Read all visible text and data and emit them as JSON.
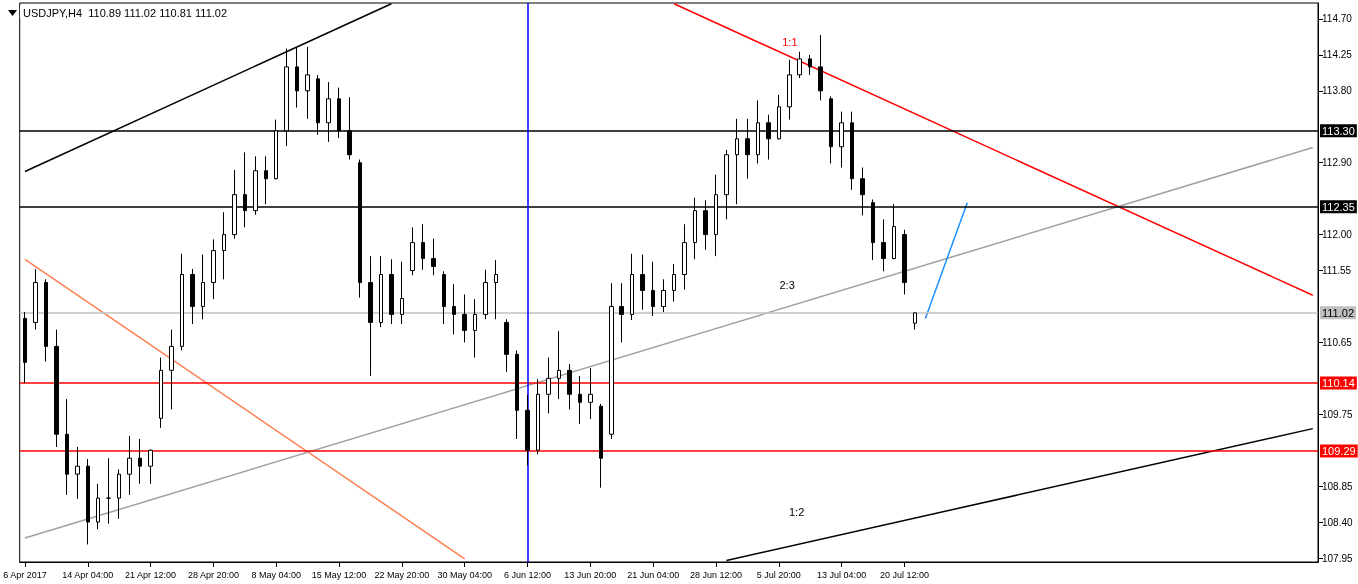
{
  "chart_data": {
    "type": "candlestick",
    "title": "USDJPY,H4  110.89 111.02 110.81 111.02",
    "categories": [
      "6 Apr 2017",
      null,
      null,
      null,
      null,
      null,
      "14 Apr 04:00",
      null,
      null,
      null,
      null,
      null,
      "21 Apr 12:00",
      null,
      null,
      null,
      null,
      null,
      "28 Apr 20:00",
      null,
      null,
      null,
      null,
      null,
      "8 May 04:00",
      null,
      null,
      null,
      null,
      null,
      "15 May 12:00",
      null,
      null,
      null,
      null,
      null,
      "22 May 20:00",
      null,
      null,
      null,
      null,
      null,
      "30 May 04:00",
      null,
      null,
      null,
      null,
      null,
      "6 Jun 12:00",
      null,
      null,
      null,
      null,
      null,
      "13 Jun 20:00",
      null,
      null,
      null,
      null,
      null,
      "21 Jun 04:00",
      null,
      null,
      null,
      null,
      null,
      "28 Jun 12:00",
      null,
      null,
      null,
      null,
      null,
      "5 Jul 20:00",
      null,
      null,
      null,
      null,
      null,
      "13 Jul 04:00",
      null,
      null,
      null,
      null,
      null,
      "20 Jul 12:00",
      null,
      null,
      null,
      null,
      null,
      null,
      null,
      null,
      null,
      null,
      null,
      null,
      null,
      null,
      null,
      null,
      null,
      null,
      null,
      null,
      null,
      null,
      null,
      null,
      null,
      null,
      null,
      null,
      null,
      null,
      null,
      null,
      null,
      null,
      null,
      null,
      null,
      null,
      null
    ],
    "color": "#000000",
    "ohlc": [
      [
        110.95,
        111.03,
        110.14,
        110.4
      ],
      [
        110.9,
        111.57,
        110.81,
        111.4
      ],
      [
        111.4,
        111.44,
        110.41,
        110.6
      ],
      [
        110.6,
        110.81,
        109.34,
        109.5
      ],
      [
        109.5,
        109.94,
        108.74,
        109.0
      ],
      [
        109.0,
        109.34,
        108.69,
        109.1
      ],
      [
        109.1,
        109.19,
        108.12,
        108.4
      ],
      [
        108.4,
        108.88,
        108.31,
        108.7
      ],
      [
        108.7,
        109.2,
        108.38,
        108.7
      ],
      [
        108.7,
        109.06,
        108.44,
        109.0
      ],
      [
        109.0,
        109.48,
        108.74,
        109.2
      ],
      [
        109.2,
        109.44,
        108.88,
        109.1
      ],
      [
        109.1,
        109.31,
        108.88,
        109.3
      ],
      [
        109.7,
        110.46,
        109.58,
        110.3
      ],
      [
        110.3,
        110.81,
        109.81,
        110.6
      ],
      [
        110.6,
        111.76,
        110.55,
        111.5
      ],
      [
        111.5,
        111.57,
        110.88,
        111.1
      ],
      [
        111.1,
        111.75,
        110.94,
        111.4
      ],
      [
        111.4,
        111.94,
        111.19,
        111.8
      ],
      [
        111.8,
        112.28,
        111.44,
        112.0
      ],
      [
        112.0,
        112.81,
        111.95,
        112.5
      ],
      [
        112.5,
        113.03,
        112.09,
        112.3
      ],
      [
        112.3,
        112.98,
        112.25,
        112.8
      ],
      [
        112.8,
        112.98,
        112.38,
        112.7
      ],
      [
        112.7,
        113.44,
        112.69,
        113.3
      ],
      [
        113.3,
        114.33,
        113.11,
        114.1
      ],
      [
        114.1,
        114.35,
        113.59,
        113.8
      ],
      [
        113.8,
        114.35,
        113.45,
        114.0
      ],
      [
        113.95,
        114.0,
        113.25,
        113.4
      ],
      [
        113.4,
        113.91,
        113.16,
        113.7
      ],
      [
        113.7,
        113.84,
        113.21,
        113.3
      ],
      [
        113.3,
        113.72,
        112.94,
        113.0
      ],
      [
        112.9,
        112.94,
        111.21,
        111.4
      ],
      [
        111.4,
        111.73,
        110.23,
        110.9
      ],
      [
        110.9,
        111.73,
        110.84,
        111.5
      ],
      [
        111.5,
        111.69,
        110.88,
        111.0
      ],
      [
        111.0,
        111.66,
        110.88,
        111.2
      ],
      [
        111.55,
        112.09,
        111.49,
        111.9
      ],
      [
        111.9,
        112.13,
        111.56,
        111.7
      ],
      [
        111.7,
        111.95,
        111.49,
        111.6
      ],
      [
        111.5,
        111.54,
        110.88,
        111.1
      ],
      [
        111.1,
        111.38,
        110.75,
        111.0
      ],
      [
        111.0,
        111.25,
        110.65,
        110.8
      ],
      [
        110.8,
        111.19,
        110.46,
        111.0
      ],
      [
        111.0,
        111.56,
        110.94,
        111.4
      ],
      [
        111.4,
        111.68,
        110.94,
        111.5
      ],
      [
        110.9,
        110.94,
        110.28,
        110.5
      ],
      [
        110.5,
        110.55,
        109.44,
        109.8
      ],
      [
        109.8,
        109.99,
        109.11,
        109.3
      ],
      [
        109.3,
        110.19,
        109.25,
        110.0
      ],
      [
        110.0,
        110.46,
        109.76,
        110.2
      ],
      [
        110.2,
        110.79,
        109.94,
        110.3
      ],
      [
        110.3,
        110.38,
        109.81,
        110.0
      ],
      [
        110.0,
        110.23,
        109.63,
        109.9
      ],
      [
        109.9,
        110.33,
        109.69,
        110.0
      ],
      [
        109.85,
        109.88,
        108.83,
        109.2
      ],
      [
        109.5,
        111.39,
        109.44,
        111.1
      ],
      [
        111.1,
        111.39,
        110.65,
        111.0
      ],
      [
        111.0,
        111.76,
        110.93,
        111.5
      ],
      [
        111.5,
        111.75,
        111.06,
        111.3
      ],
      [
        111.3,
        111.66,
        110.98,
        111.1
      ],
      [
        111.1,
        111.44,
        111.03,
        111.3
      ],
      [
        111.3,
        111.63,
        111.16,
        111.5
      ],
      [
        111.5,
        112.13,
        111.31,
        111.9
      ],
      [
        111.9,
        112.46,
        111.69,
        112.3
      ],
      [
        112.3,
        112.43,
        111.81,
        112.0
      ],
      [
        112.0,
        112.75,
        111.73,
        112.5
      ],
      [
        112.5,
        113.06,
        112.19,
        113.0
      ],
      [
        113.0,
        113.45,
        112.38,
        113.2
      ],
      [
        113.2,
        113.45,
        112.7,
        113.0
      ],
      [
        113.0,
        113.68,
        112.89,
        113.4
      ],
      [
        113.4,
        113.5,
        112.94,
        113.2
      ],
      [
        113.2,
        113.75,
        113.19,
        113.6
      ],
      [
        113.6,
        114.19,
        113.44,
        114.0
      ],
      [
        114.0,
        114.29,
        113.96,
        114.2
      ],
      [
        114.2,
        114.25,
        114.0,
        114.1
      ],
      [
        114.1,
        114.5,
        113.68,
        113.8
      ],
      [
        113.7,
        113.73,
        112.89,
        113.1
      ],
      [
        113.1,
        113.54,
        112.84,
        113.4
      ],
      [
        113.4,
        113.54,
        112.56,
        112.7
      ],
      [
        112.7,
        112.84,
        112.24,
        112.5
      ],
      [
        112.4,
        112.44,
        111.68,
        111.9
      ],
      [
        111.9,
        112.19,
        111.54,
        111.7
      ],
      [
        111.7,
        112.38,
        111.69,
        112.1
      ],
      [
        112.0,
        112.06,
        111.25,
        111.4
      ],
      [
        110.89,
        111.02,
        110.81,
        111.02
      ],
      null,
      null,
      null,
      null,
      null,
      null,
      null,
      null,
      null,
      null,
      null,
      null,
      null,
      null,
      null,
      null,
      null,
      null,
      null,
      null,
      null,
      null,
      null,
      null,
      null,
      null,
      null,
      null,
      null,
      null,
      null,
      null,
      null,
      null,
      null,
      null,
      null,
      null
    ],
    "series": [
      {
        "type": "line",
        "color": "#000000",
        "values": [
          112.79,
          null,
          null,
          null,
          null,
          null,
          null,
          null,
          null,
          null,
          null,
          null,
          null,
          null,
          null,
          null,
          null,
          null,
          null,
          null,
          null,
          null,
          null,
          null,
          null,
          null,
          null,
          null,
          null,
          null,
          null,
          null,
          null,
          null,
          null,
          114.89,
          null,
          null,
          null,
          null,
          null,
          null,
          null,
          null,
          null,
          null,
          null,
          null,
          null,
          null,
          null,
          null,
          null,
          null,
          null,
          null,
          null,
          null,
          null,
          null,
          null,
          null,
          null,
          null,
          null,
          null,
          null,
          null,
          null,
          null,
          null,
          null,
          null,
          null,
          null,
          null,
          null,
          null,
          null,
          null,
          null,
          null,
          null,
          null,
          null,
          null,
          null,
          null,
          null,
          null,
          null,
          null,
          null,
          null,
          null,
          null,
          null,
          null,
          null,
          null,
          null,
          null,
          null,
          null,
          null,
          null,
          null,
          null,
          null,
          null,
          null,
          null,
          null,
          null,
          null,
          null,
          null,
          null,
          null,
          null,
          null,
          null,
          null,
          null
        ]
      },
      {
        "type": "line",
        "color": "#ff0000",
        "values": [
          null,
          null,
          null,
          null,
          null,
          null,
          null,
          null,
          null,
          null,
          null,
          null,
          null,
          null,
          null,
          null,
          null,
          null,
          null,
          null,
          null,
          null,
          null,
          null,
          null,
          null,
          null,
          null,
          null,
          null,
          null,
          null,
          null,
          null,
          null,
          null,
          null,
          null,
          null,
          null,
          null,
          null,
          null,
          null,
          null,
          null,
          null,
          null,
          null,
          null,
          null,
          null,
          null,
          null,
          null,
          null,
          null,
          null,
          null,
          null,
          null,
          null,
          114.89,
          null,
          null,
          null,
          null,
          null,
          null,
          null,
          null,
          null,
          null,
          null,
          null,
          null,
          null,
          null,
          null,
          null,
          null,
          null,
          null,
          null,
          null,
          null,
          null,
          null,
          null,
          null,
          null,
          null,
          null,
          null,
          null,
          null,
          null,
          null,
          null,
          null,
          null,
          null,
          null,
          null,
          null,
          null,
          null,
          null,
          null,
          null,
          null,
          null,
          null,
          null,
          null,
          null,
          null,
          null,
          null,
          null,
          null,
          null,
          null,
          111.24
        ]
      },
      {
        "type": "line",
        "color": "#ff7f50",
        "values": [
          111.69,
          null,
          null,
          null,
          null,
          null,
          null,
          null,
          null,
          null,
          null,
          null,
          null,
          null,
          null,
          null,
          null,
          null,
          null,
          null,
          null,
          null,
          null,
          null,
          null,
          null,
          null,
          null,
          null,
          null,
          null,
          null,
          null,
          null,
          null,
          null,
          null,
          null,
          null,
          null,
          null,
          null,
          107.94,
          null,
          null,
          null,
          null,
          null,
          null,
          null,
          null,
          null,
          null,
          null,
          null,
          null,
          null,
          null,
          null,
          null,
          null,
          null,
          null,
          null,
          null,
          null,
          null,
          null,
          null,
          null,
          null,
          null,
          null,
          null,
          null,
          null,
          null,
          null,
          null,
          null,
          null,
          null,
          null,
          null,
          null,
          null,
          null,
          null,
          null,
          null,
          null,
          null,
          null,
          null,
          null,
          null,
          null,
          null,
          null,
          null,
          null,
          null,
          null,
          null,
          null,
          null,
          null,
          null,
          null,
          null,
          null,
          null,
          null,
          null,
          null,
          null,
          null,
          null,
          null,
          null,
          null,
          null,
          null,
          null
        ]
      },
      {
        "type": "line",
        "color": "#a0a0a0",
        "values": [
          108.2,
          null,
          null,
          null,
          null,
          null,
          null,
          null,
          null,
          null,
          null,
          null,
          null,
          null,
          null,
          null,
          null,
          null,
          null,
          null,
          null,
          null,
          null,
          null,
          null,
          null,
          null,
          null,
          null,
          null,
          null,
          null,
          null,
          null,
          null,
          null,
          null,
          null,
          null,
          null,
          null,
          null,
          null,
          null,
          null,
          null,
          null,
          null,
          null,
          null,
          null,
          null,
          null,
          null,
          null,
          null,
          null,
          null,
          null,
          null,
          null,
          null,
          null,
          null,
          null,
          null,
          null,
          null,
          null,
          null,
          null,
          null,
          null,
          null,
          null,
          null,
          null,
          null,
          null,
          null,
          null,
          null,
          null,
          null,
          null,
          null,
          null,
          null,
          null,
          null,
          null,
          null,
          null,
          null,
          null,
          null,
          null,
          null,
          null,
          null,
          null,
          null,
          null,
          null,
          null,
          null,
          null,
          null,
          null,
          null,
          null,
          null,
          null,
          null,
          null,
          null,
          null,
          null,
          null,
          null,
          null,
          null,
          null,
          113.09
        ]
      },
      {
        "type": "line",
        "color": "#000000",
        "values": [
          null,
          null,
          null,
          null,
          null,
          null,
          null,
          null,
          null,
          null,
          null,
          null,
          null,
          null,
          null,
          null,
          null,
          null,
          null,
          null,
          null,
          null,
          null,
          null,
          null,
          null,
          null,
          null,
          null,
          null,
          null,
          null,
          null,
          null,
          null,
          null,
          null,
          null,
          null,
          null,
          null,
          null,
          null,
          null,
          null,
          null,
          null,
          null,
          null,
          null,
          null,
          null,
          null,
          null,
          null,
          null,
          null,
          null,
          null,
          null,
          null,
          null,
          null,
          null,
          null,
          null,
          null,
          107.92,
          null,
          null,
          null,
          null,
          null,
          null,
          null,
          null,
          null,
          null,
          null,
          null,
          null,
          null,
          null,
          null,
          null,
          null,
          null,
          null,
          null,
          null,
          null,
          null,
          null,
          null,
          null,
          null,
          null,
          null,
          null,
          null,
          null,
          null,
          null,
          null,
          null,
          null,
          null,
          null,
          null,
          null,
          null,
          null,
          null,
          null,
          null,
          null,
          null,
          null,
          null,
          null,
          null,
          null,
          null,
          109.57
        ]
      },
      {
        "type": "line",
        "color": "#1e90ff",
        "values": [
          null,
          null,
          null,
          null,
          null,
          null,
          null,
          null,
          null,
          null,
          null,
          null,
          null,
          null,
          null,
          null,
          null,
          null,
          null,
          null,
          null,
          null,
          null,
          null,
          null,
          null,
          null,
          null,
          null,
          null,
          null,
          null,
          null,
          null,
          null,
          null,
          null,
          null,
          null,
          null,
          null,
          null,
          null,
          null,
          null,
          null,
          null,
          null,
          null,
          null,
          null,
          null,
          null,
          null,
          null,
          null,
          null,
          null,
          null,
          null,
          null,
          null,
          null,
          null,
          null,
          null,
          null,
          null,
          null,
          null,
          null,
          null,
          null,
          null,
          null,
          null,
          null,
          null,
          null,
          null,
          null,
          null,
          null,
          null,
          null,
          null,
          110.95,
          null,
          null,
          null,
          112.4,
          null,
          null,
          null,
          null,
          null,
          null,
          null,
          null,
          null,
          null,
          null,
          null,
          null,
          null,
          null,
          null,
          null,
          null,
          null,
          null,
          null,
          null,
          null,
          null,
          null,
          null,
          null,
          null,
          null,
          null,
          null,
          null,
          null
        ]
      }
    ],
    "ref_lines": [
      {
        "axis": "y",
        "value": 113.3,
        "label": "113.30",
        "color": "#000000",
        "line_style": "solid"
      },
      {
        "axis": "y",
        "value": 112.35,
        "label": "112.35",
        "color": "#000000",
        "line_style": "solid"
      },
      {
        "axis": "y",
        "value": 111.02,
        "label": "111.02",
        "color": "#c0c0c0",
        "line_style": "solid"
      },
      {
        "axis": "y",
        "value": 110.14,
        "label": "110.14",
        "color": "#ff0000",
        "line_style": "solid"
      },
      {
        "axis": "y",
        "value": 109.29,
        "label": "109.29",
        "color": "#ff0000",
        "line_style": "solid"
      },
      {
        "axis": "x",
        "value": "6 Jun 12:00",
        "color": "#0000ff",
        "line_style": "solid"
      }
    ],
    "annotations": [
      "1:1",
      "2:3",
      "1:2"
    ],
    "ylim": [
      107.9,
      114.9
    ],
    "yticks": [
      {
        "value": 114.7,
        "label": "114.70"
      },
      {
        "value": 114.25,
        "label": "114.25"
      },
      {
        "value": 113.8,
        "label": "113.80"
      },
      {
        "value": 112.9,
        "label": "112.90"
      },
      {
        "value": 112.0,
        "label": "112.00"
      },
      {
        "value": 111.55,
        "label": "111.55"
      },
      {
        "value": 110.65,
        "label": "110.65"
      },
      {
        "value": 109.75,
        "label": "109.75"
      },
      {
        "value": 108.85,
        "label": "108.85"
      },
      {
        "value": 108.4,
        "label": "108.40"
      },
      {
        "value": 107.95,
        "label": "107.95"
      }
    ],
    "grid": false
  }
}
